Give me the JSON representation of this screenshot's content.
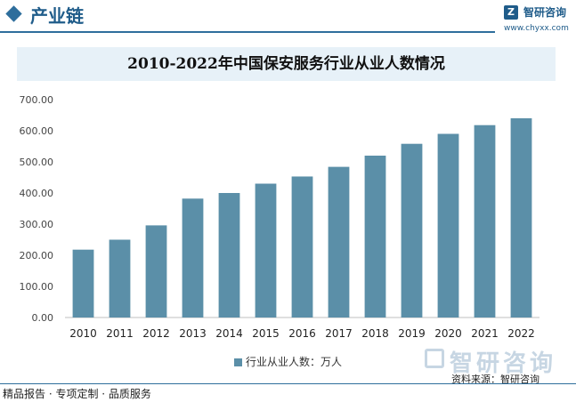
{
  "header": {
    "section_title": "产业链",
    "brand_name": "智研咨询",
    "brand_url": "www.chyxx.com"
  },
  "chart_data": {
    "type": "bar",
    "title": "2010-2022年中国保安服务行业从业人数情况",
    "categories": [
      "2010",
      "2011",
      "2012",
      "2013",
      "2014",
      "2015",
      "2016",
      "2017",
      "2018",
      "2019",
      "2020",
      "2021",
      "2022"
    ],
    "series": [
      {
        "name": "行业从业人数：万人",
        "color": "#5b8fa8",
        "values": [
          218,
          250,
          296,
          382,
          400,
          430,
          453,
          484,
          520,
          558,
          590,
          618,
          640
        ]
      }
    ],
    "ylim": [
      0,
      700
    ],
    "yticks": [
      "0.00",
      "100.00",
      "200.00",
      "300.00",
      "400.00",
      "500.00",
      "600.00",
      "700.00"
    ],
    "legend_position": "bottom"
  },
  "source": "资料来源：智研咨询",
  "watermark": "智研咨询",
  "footer": "精品报告 · 专项定制 · 品质服务"
}
